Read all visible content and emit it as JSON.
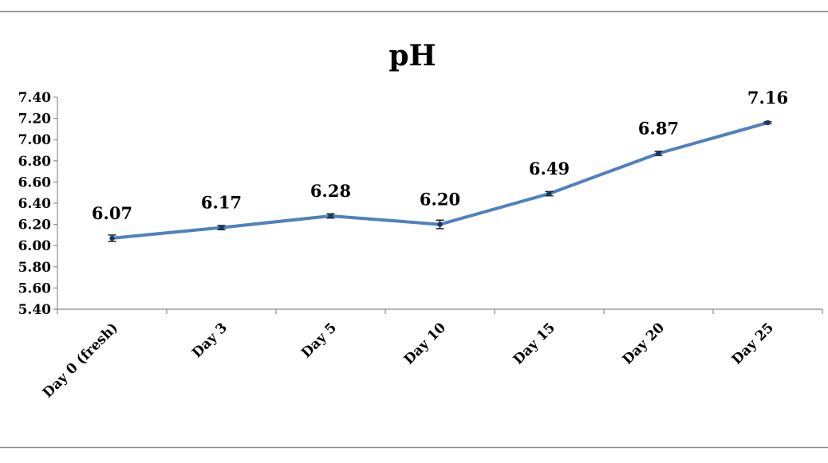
{
  "chart_data": {
    "type": "line",
    "title": "pH",
    "xlabel": "",
    "ylabel": "",
    "categories": [
      "Day 0 (fresh)",
      "Day 3",
      "Day 5",
      "Day 10",
      "Day 15",
      "Day 20",
      "Day 25"
    ],
    "series": [
      {
        "values": [
          6.07,
          6.17,
          6.28,
          6.2,
          6.49,
          6.87,
          7.16
        ],
        "data_labels": [
          "6.07",
          "6.17",
          "6.28",
          "6.20",
          "6.49",
          "6.87",
          "7.16"
        ],
        "error": [
          0.03,
          0.02,
          0.02,
          0.04,
          0.02,
          0.02,
          0.01
        ],
        "color": "#4f81bd"
      }
    ],
    "ylim": [
      5.4,
      7.4
    ],
    "y_ticks": [
      "7.40",
      "7.20",
      "7.00",
      "6.80",
      "6.60",
      "6.40",
      "6.20",
      "6.00",
      "5.80",
      "5.60",
      "5.40"
    ],
    "grid": false,
    "legend": "none"
  }
}
